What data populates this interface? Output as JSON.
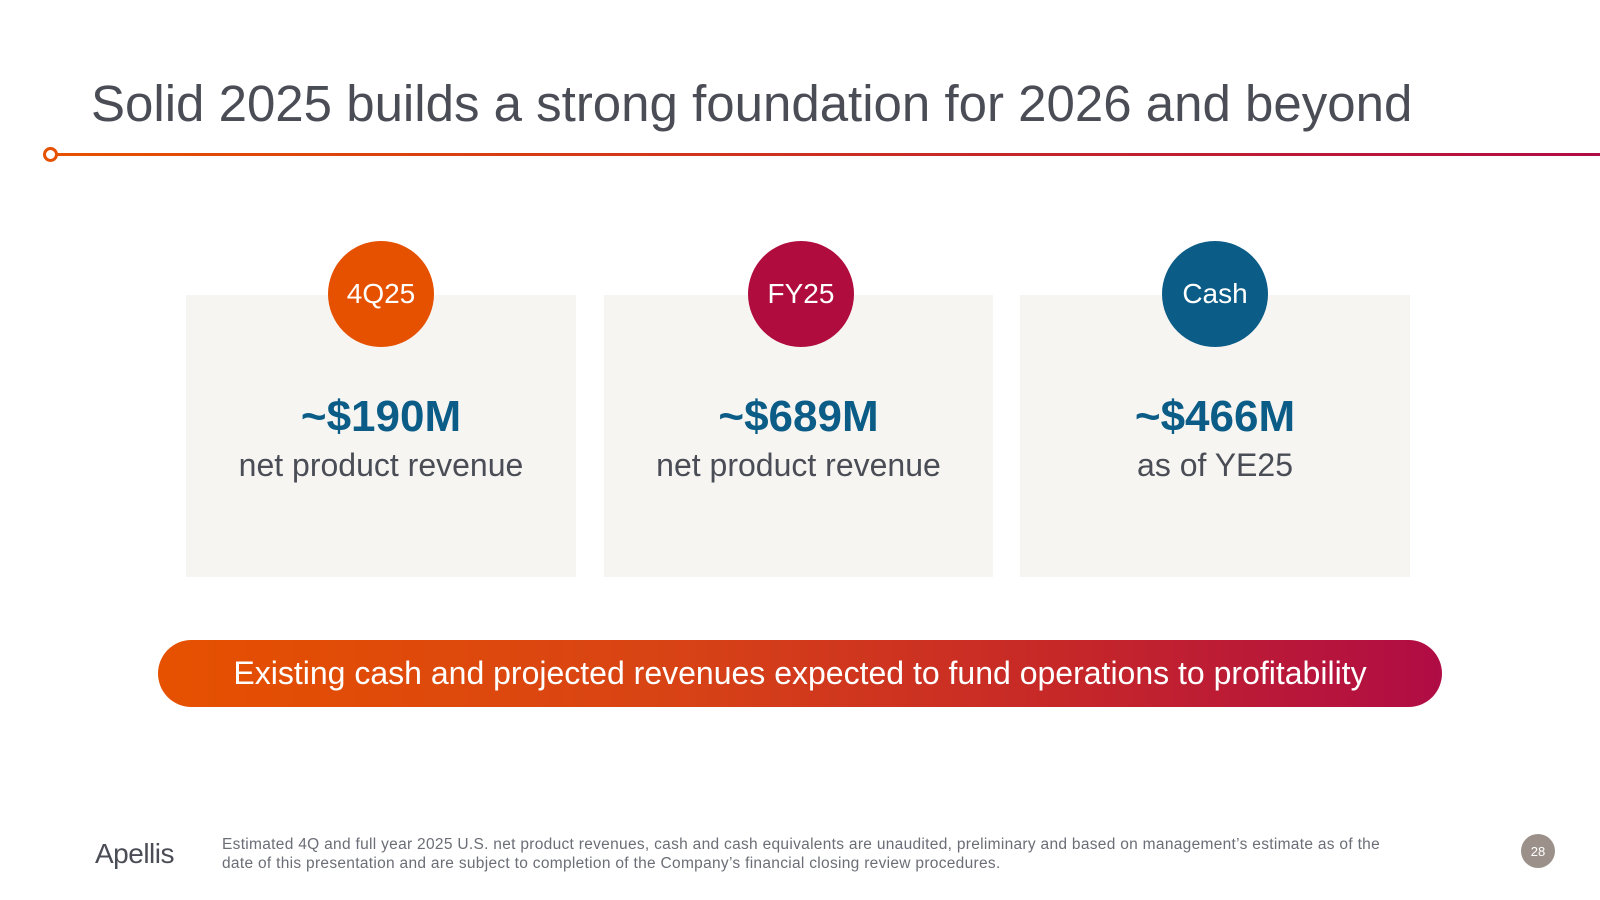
{
  "slide": {
    "title": "Solid 2025 builds a strong foundation for 2026 and beyond",
    "cards": [
      {
        "badge": "4Q25",
        "value": "~$190M",
        "caption": "net product revenue",
        "badge_color": "#e65100"
      },
      {
        "badge": "FY25",
        "value": "~$689M",
        "caption": "net product revenue",
        "badge_color": "#b00c3e"
      },
      {
        "badge": "Cash",
        "value": "~$466M",
        "caption": "as of YE25",
        "badge_color": "#0b5c86"
      }
    ],
    "banner": "Existing cash and projected revenues expected to fund operations to profitability",
    "footer": {
      "logo": "Apellis",
      "footnote": "Estimated 4Q and full year 2025 U.S. net product revenues, cash and cash equivalents are unaudited, preliminary and based on management’s estimate as of the date of this presentation and are subject to completion of the Company’s financial closing review procedures.",
      "page_number": "28"
    },
    "colors": {
      "accent_orange": "#e65100",
      "accent_crimson": "#b00c3e",
      "accent_blue": "#0b5c86",
      "title_gray": "#4a4d55"
    }
  }
}
